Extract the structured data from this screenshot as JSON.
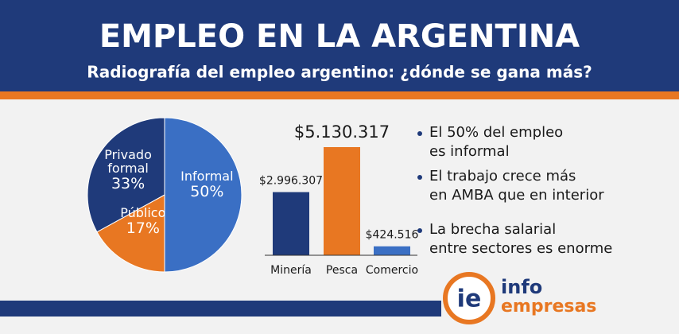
{
  "header": {
    "title": "EMPLEO EN LA ARGENTINA",
    "subtitle": "Radiografía del empleo argentino: ¿dónde se gana más?"
  },
  "chart_data": [
    {
      "type": "pie",
      "categories": [
        "Informal",
        "Público",
        "Privado formal"
      ],
      "values": [
        50,
        17,
        33
      ],
      "value_labels": [
        "50%",
        "17%",
        "33%"
      ],
      "colors": [
        "#3a6fc4",
        "#e87722",
        "#1f3a7a"
      ]
    },
    {
      "type": "bar",
      "categories": [
        "Minería",
        "Pesca",
        "Comercio"
      ],
      "values": [
        2996307,
        5130317,
        424516
      ],
      "value_labels": [
        "$2.996.307",
        "$5.130.317",
        "$424.516"
      ],
      "colors": [
        "#1f3a7a",
        "#e87722",
        "#3a6fc4"
      ]
    }
  ],
  "bullets": [
    [
      "El 50% del empleo",
      "es informal"
    ],
    [
      "El trabajo crece más",
      "en AMBA que en interior"
    ],
    [
      "La brecha salarial",
      "entre sectores es enorme"
    ]
  ],
  "logo": {
    "mark": "ie",
    "line_1": "info",
    "line_2": "empresas"
  }
}
